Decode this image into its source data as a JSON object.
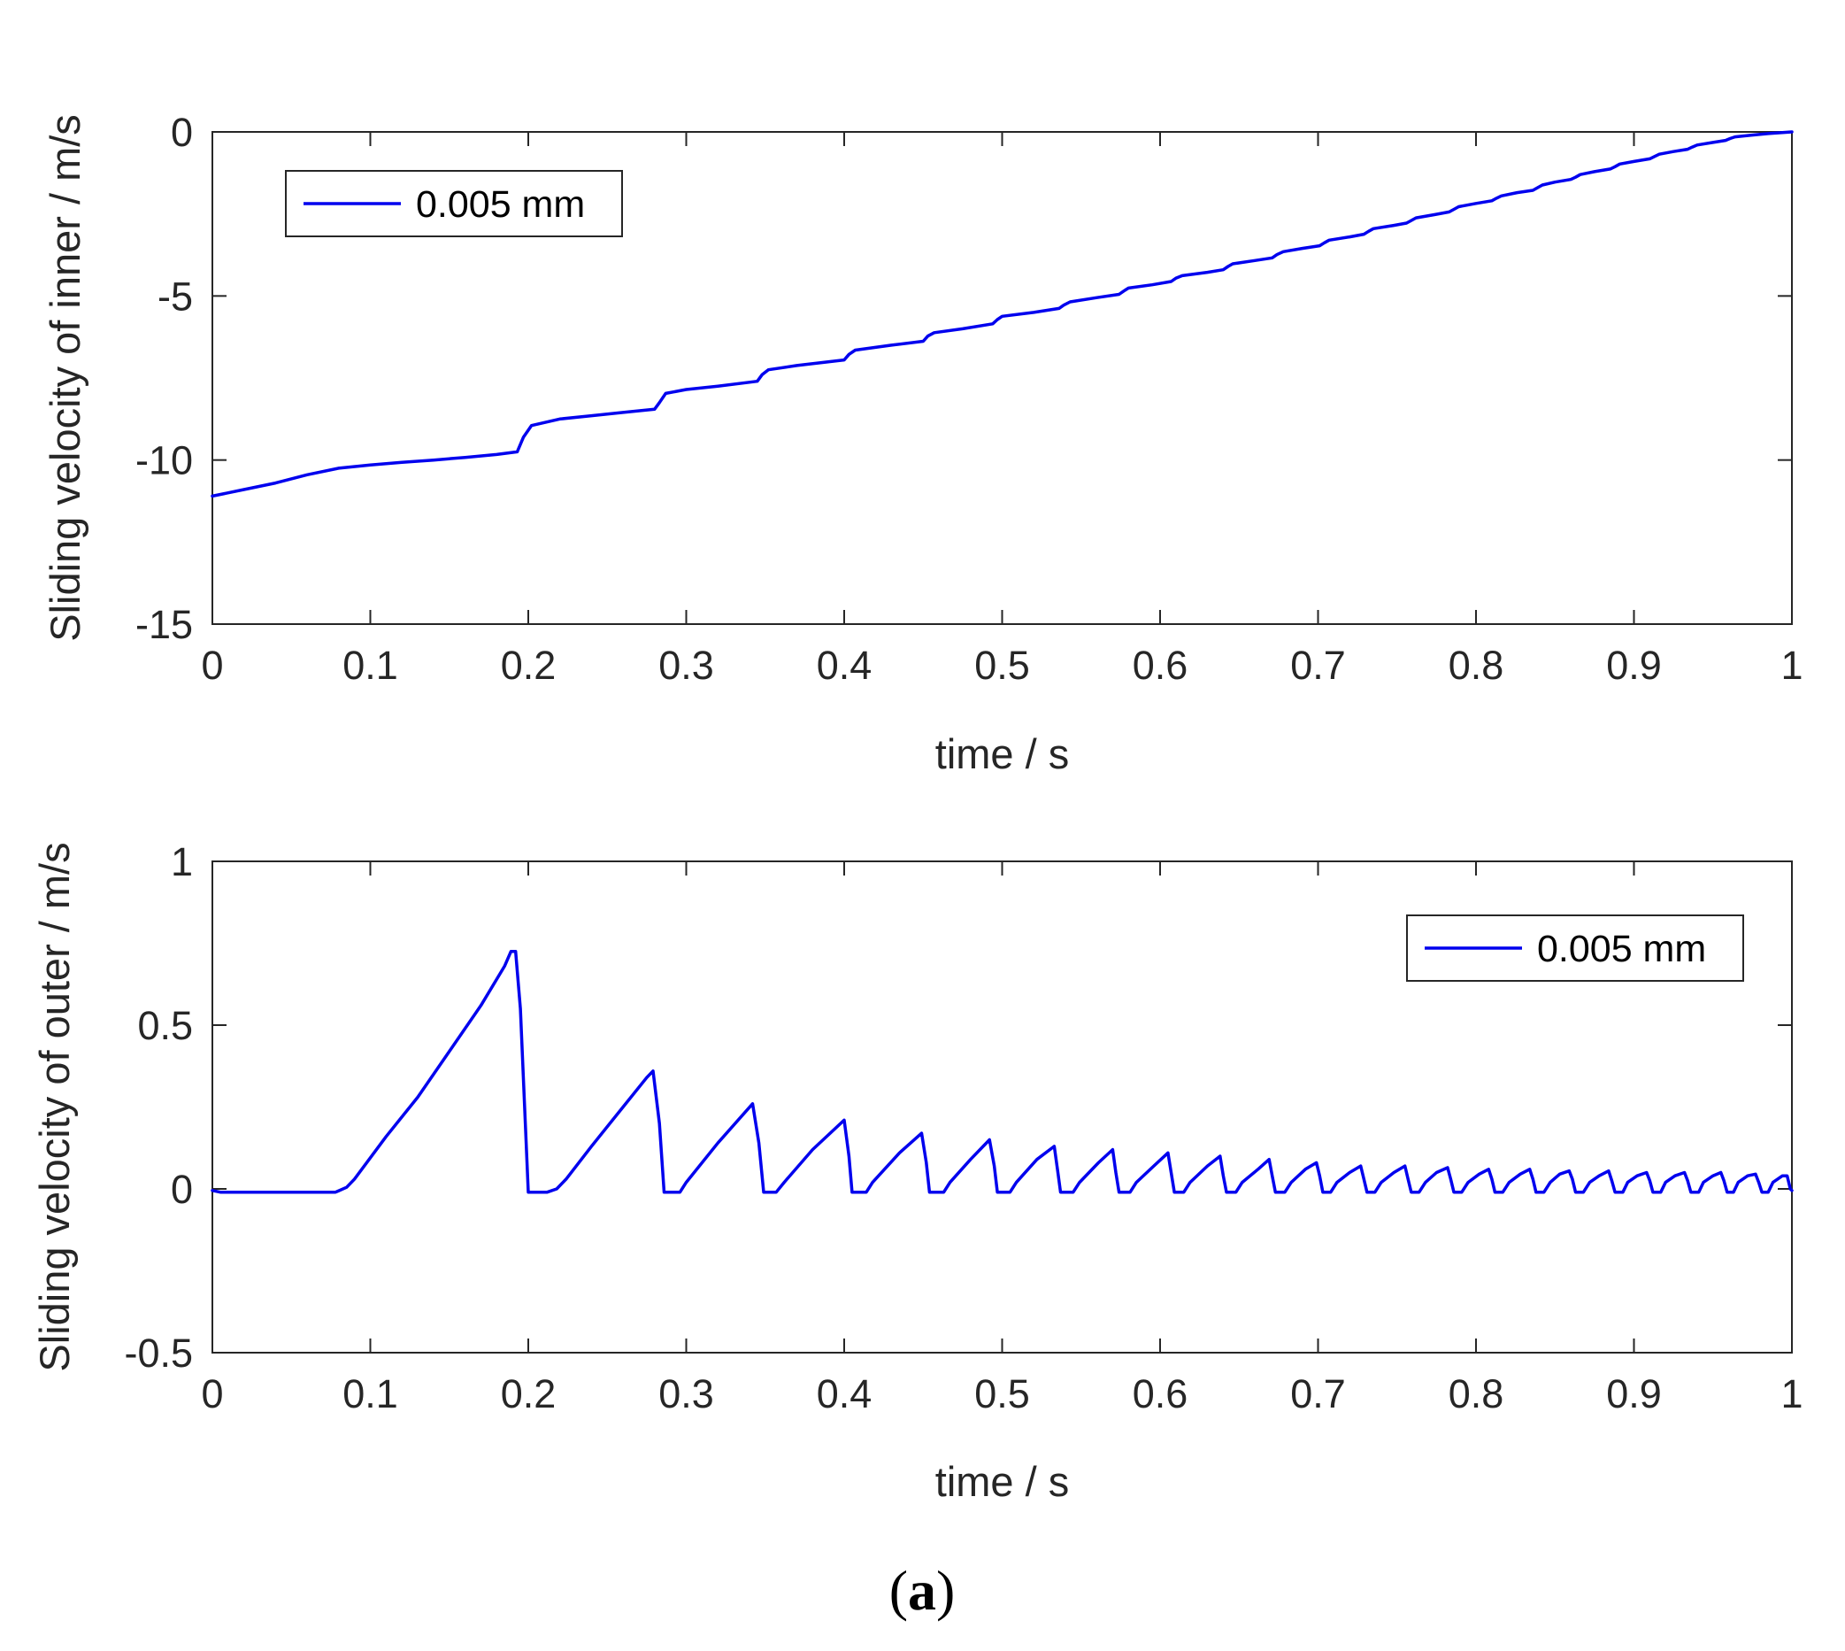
{
  "chart_data": [
    {
      "type": "line",
      "xlabel": "time / s",
      "ylabel": "Sliding velocity of inner / m/s",
      "xlim": [
        0,
        1
      ],
      "ylim": [
        -15,
        0
      ],
      "xticks": [
        0,
        0.1,
        0.2,
        0.3,
        0.4,
        0.5,
        0.6,
        0.7,
        0.8,
        0.9,
        1
      ],
      "xtick_labels": [
        "0",
        "0.1",
        "0.2",
        "0.3",
        "0.4",
        "0.5",
        "0.6",
        "0.7",
        "0.8",
        "0.9",
        "1"
      ],
      "yticks": [
        -15,
        -10,
        -5,
        0
      ],
      "ytick_labels": [
        "-15",
        "-10",
        "-5",
        "0"
      ],
      "legend_position": "top-left",
      "series": [
        {
          "name": "0.005 mm",
          "color": "#0000ee",
          "points": [
            [
              0,
              -11.1
            ],
            [
              0.02,
              -10.9
            ],
            [
              0.04,
              -10.7
            ],
            [
              0.06,
              -10.45
            ],
            [
              0.08,
              -10.25
            ],
            [
              0.1,
              -10.15
            ],
            [
              0.12,
              -10.07
            ],
            [
              0.14,
              -10.0
            ],
            [
              0.16,
              -9.92
            ],
            [
              0.18,
              -9.83
            ],
            [
              0.193,
              -9.75
            ],
            [
              0.197,
              -9.3
            ],
            [
              0.202,
              -8.95
            ],
            [
              0.22,
              -8.75
            ],
            [
              0.24,
              -8.65
            ],
            [
              0.26,
              -8.55
            ],
            [
              0.28,
              -8.45
            ],
            [
              0.283,
              -8.25
            ],
            [
              0.287,
              -7.97
            ],
            [
              0.3,
              -7.85
            ],
            [
              0.32,
              -7.75
            ],
            [
              0.345,
              -7.6
            ],
            [
              0.348,
              -7.4
            ],
            [
              0.352,
              -7.25
            ],
            [
              0.37,
              -7.12
            ],
            [
              0.4,
              -6.95
            ],
            [
              0.403,
              -6.78
            ],
            [
              0.407,
              -6.65
            ],
            [
              0.43,
              -6.5
            ],
            [
              0.45,
              -6.38
            ],
            [
              0.453,
              -6.22
            ],
            [
              0.457,
              -6.12
            ],
            [
              0.475,
              -6.0
            ],
            [
              0.494,
              -5.85
            ],
            [
              0.497,
              -5.72
            ],
            [
              0.5,
              -5.62
            ],
            [
              0.52,
              -5.5
            ],
            [
              0.536,
              -5.38
            ],
            [
              0.539,
              -5.28
            ],
            [
              0.543,
              -5.18
            ],
            [
              0.56,
              -5.05
            ],
            [
              0.574,
              -4.95
            ],
            [
              0.577,
              -4.85
            ],
            [
              0.58,
              -4.76
            ],
            [
              0.595,
              -4.66
            ],
            [
              0.607,
              -4.56
            ],
            [
              0.61,
              -4.46
            ],
            [
              0.614,
              -4.38
            ],
            [
              0.63,
              -4.28
            ],
            [
              0.64,
              -4.2
            ],
            [
              0.643,
              -4.1
            ],
            [
              0.646,
              -4.02
            ],
            [
              0.66,
              -3.92
            ],
            [
              0.671,
              -3.84
            ],
            [
              0.674,
              -3.74
            ],
            [
              0.678,
              -3.65
            ],
            [
              0.69,
              -3.55
            ],
            [
              0.701,
              -3.47
            ],
            [
              0.704,
              -3.38
            ],
            [
              0.707,
              -3.3
            ],
            [
              0.72,
              -3.2
            ],
            [
              0.729,
              -3.12
            ],
            [
              0.732,
              -3.03
            ],
            [
              0.735,
              -2.95
            ],
            [
              0.748,
              -2.85
            ],
            [
              0.756,
              -2.78
            ],
            [
              0.759,
              -2.7
            ],
            [
              0.762,
              -2.62
            ],
            [
              0.774,
              -2.52
            ],
            [
              0.783,
              -2.44
            ],
            [
              0.786,
              -2.36
            ],
            [
              0.789,
              -2.28
            ],
            [
              0.8,
              -2.18
            ],
            [
              0.81,
              -2.1
            ],
            [
              0.813,
              -2.02
            ],
            [
              0.816,
              -1.95
            ],
            [
              0.826,
              -1.85
            ],
            [
              0.836,
              -1.78
            ],
            [
              0.839,
              -1.7
            ],
            [
              0.842,
              -1.62
            ],
            [
              0.85,
              -1.53
            ],
            [
              0.86,
              -1.45
            ],
            [
              0.863,
              -1.38
            ],
            [
              0.866,
              -1.3
            ],
            [
              0.875,
              -1.21
            ],
            [
              0.885,
              -1.13
            ],
            [
              0.888,
              -1.06
            ],
            [
              0.891,
              -0.98
            ],
            [
              0.9,
              -0.9
            ],
            [
              0.91,
              -0.82
            ],
            [
              0.913,
              -0.75
            ],
            [
              0.916,
              -0.68
            ],
            [
              0.925,
              -0.6
            ],
            [
              0.934,
              -0.53
            ],
            [
              0.937,
              -0.46
            ],
            [
              0.94,
              -0.4
            ],
            [
              0.95,
              -0.32
            ],
            [
              0.958,
              -0.26
            ],
            [
              0.961,
              -0.2
            ],
            [
              0.964,
              -0.15
            ],
            [
              0.974,
              -0.1
            ],
            [
              0.985,
              -0.05
            ],
            [
              1.0,
              0.0
            ]
          ]
        }
      ]
    },
    {
      "type": "line",
      "xlabel": "time / s",
      "ylabel": "Sliding velocity of outer / m/s",
      "xlim": [
        0,
        1
      ],
      "ylim": [
        -0.5,
        1
      ],
      "xticks": [
        0,
        0.1,
        0.2,
        0.3,
        0.4,
        0.5,
        0.6,
        0.7,
        0.8,
        0.9,
        1
      ],
      "xtick_labels": [
        "0",
        "0.1",
        "0.2",
        "0.3",
        "0.4",
        "0.5",
        "0.6",
        "0.7",
        "0.8",
        "0.9",
        "1"
      ],
      "yticks": [
        -0.5,
        0,
        0.5,
        1
      ],
      "ytick_labels": [
        "-0.5",
        "0",
        "0.5",
        "1"
      ],
      "legend_position": "top-right",
      "series": [
        {
          "name": "0.005 mm",
          "color": "#0000ee",
          "points": [
            [
              0,
              -0.005
            ],
            [
              0.005,
              -0.01
            ],
            [
              0.078,
              -0.01
            ],
            [
              0.085,
              0.005
            ],
            [
              0.09,
              0.03
            ],
            [
              0.11,
              0.16
            ],
            [
              0.13,
              0.28
            ],
            [
              0.15,
              0.42
            ],
            [
              0.17,
              0.56
            ],
            [
              0.185,
              0.68
            ],
            [
              0.189,
              0.725
            ],
            [
              0.192,
              0.725
            ],
            [
              0.195,
              0.55
            ],
            [
              0.2,
              -0.01
            ],
            [
              0.212,
              -0.01
            ],
            [
              0.218,
              0.0
            ],
            [
              0.224,
              0.03
            ],
            [
              0.24,
              0.13
            ],
            [
              0.26,
              0.25
            ],
            [
              0.275,
              0.34
            ],
            [
              0.279,
              0.36
            ],
            [
              0.283,
              0.2
            ],
            [
              0.286,
              -0.01
            ],
            [
              0.296,
              -0.01
            ],
            [
              0.3,
              0.02
            ],
            [
              0.32,
              0.14
            ],
            [
              0.342,
              0.26
            ],
            [
              0.346,
              0.14
            ],
            [
              0.349,
              -0.01
            ],
            [
              0.357,
              -0.01
            ],
            [
              0.362,
              0.02
            ],
            [
              0.38,
              0.12
            ],
            [
              0.4,
              0.21
            ],
            [
              0.403,
              0.1
            ],
            [
              0.405,
              -0.01
            ],
            [
              0.414,
              -0.01
            ],
            [
              0.418,
              0.02
            ],
            [
              0.435,
              0.11
            ],
            [
              0.449,
              0.17
            ],
            [
              0.452,
              0.08
            ],
            [
              0.454,
              -0.01
            ],
            [
              0.463,
              -0.01
            ],
            [
              0.467,
              0.02
            ],
            [
              0.48,
              0.09
            ],
            [
              0.492,
              0.15
            ],
            [
              0.495,
              0.07
            ],
            [
              0.497,
              -0.01
            ],
            [
              0.505,
              -0.01
            ],
            [
              0.509,
              0.02
            ],
            [
              0.522,
              0.09
            ],
            [
              0.533,
              0.13
            ],
            [
              0.535,
              0.06
            ],
            [
              0.537,
              -0.01
            ],
            [
              0.545,
              -0.01
            ],
            [
              0.549,
              0.02
            ],
            [
              0.561,
              0.08
            ],
            [
              0.57,
              0.12
            ],
            [
              0.572,
              0.05
            ],
            [
              0.574,
              -0.01
            ],
            [
              0.581,
              -0.01
            ],
            [
              0.585,
              0.02
            ],
            [
              0.596,
              0.07
            ],
            [
              0.605,
              0.11
            ],
            [
              0.607,
              0.05
            ],
            [
              0.609,
              -0.01
            ],
            [
              0.615,
              -0.01
            ],
            [
              0.619,
              0.02
            ],
            [
              0.63,
              0.07
            ],
            [
              0.638,
              0.1
            ],
            [
              0.64,
              0.04
            ],
            [
              0.642,
              -0.01
            ],
            [
              0.648,
              -0.01
            ],
            [
              0.652,
              0.02
            ],
            [
              0.662,
              0.06
            ],
            [
              0.669,
              0.09
            ],
            [
              0.671,
              0.04
            ],
            [
              0.673,
              -0.01
            ],
            [
              0.679,
              -0.01
            ],
            [
              0.683,
              0.02
            ],
            [
              0.692,
              0.06
            ],
            [
              0.699,
              0.08
            ],
            [
              0.701,
              0.04
            ],
            [
              0.703,
              -0.01
            ],
            [
              0.708,
              -0.01
            ],
            [
              0.712,
              0.02
            ],
            [
              0.72,
              0.05
            ],
            [
              0.727,
              0.07
            ],
            [
              0.729,
              0.03
            ],
            [
              0.731,
              -0.01
            ],
            [
              0.736,
              -0.01
            ],
            [
              0.74,
              0.02
            ],
            [
              0.748,
              0.05
            ],
            [
              0.755,
              0.07
            ],
            [
              0.757,
              0.03
            ],
            [
              0.759,
              -0.01
            ],
            [
              0.764,
              -0.01
            ],
            [
              0.768,
              0.02
            ],
            [
              0.775,
              0.05
            ],
            [
              0.782,
              0.065
            ],
            [
              0.784,
              0.03
            ],
            [
              0.786,
              -0.01
            ],
            [
              0.791,
              -0.01
            ],
            [
              0.795,
              0.02
            ],
            [
              0.802,
              0.045
            ],
            [
              0.808,
              0.06
            ],
            [
              0.81,
              0.03
            ],
            [
              0.812,
              -0.01
            ],
            [
              0.817,
              -0.01
            ],
            [
              0.821,
              0.02
            ],
            [
              0.828,
              0.045
            ],
            [
              0.834,
              0.06
            ],
            [
              0.836,
              0.03
            ],
            [
              0.838,
              -0.01
            ],
            [
              0.843,
              -0.01
            ],
            [
              0.847,
              0.02
            ],
            [
              0.853,
              0.045
            ],
            [
              0.859,
              0.055
            ],
            [
              0.861,
              0.03
            ],
            [
              0.863,
              -0.01
            ],
            [
              0.868,
              -0.01
            ],
            [
              0.872,
              0.02
            ],
            [
              0.878,
              0.04
            ],
            [
              0.884,
              0.055
            ],
            [
              0.886,
              0.025
            ],
            [
              0.888,
              -0.01
            ],
            [
              0.893,
              -0.01
            ],
            [
              0.896,
              0.02
            ],
            [
              0.902,
              0.04
            ],
            [
              0.908,
              0.05
            ],
            [
              0.91,
              0.025
            ],
            [
              0.912,
              -0.01
            ],
            [
              0.917,
              -0.01
            ],
            [
              0.92,
              0.02
            ],
            [
              0.926,
              0.04
            ],
            [
              0.932,
              0.05
            ],
            [
              0.934,
              0.025
            ],
            [
              0.936,
              -0.01
            ],
            [
              0.941,
              -0.01
            ],
            [
              0.944,
              0.02
            ],
            [
              0.95,
              0.04
            ],
            [
              0.955,
              0.05
            ],
            [
              0.957,
              0.025
            ],
            [
              0.959,
              -0.01
            ],
            [
              0.963,
              -0.01
            ],
            [
              0.966,
              0.02
            ],
            [
              0.972,
              0.04
            ],
            [
              0.977,
              0.045
            ],
            [
              0.979,
              0.02
            ],
            [
              0.981,
              -0.01
            ],
            [
              0.985,
              -0.01
            ],
            [
              0.988,
              0.02
            ],
            [
              0.994,
              0.04
            ],
            [
              0.997,
              0.04
            ],
            [
              0.999,
              0.0
            ],
            [
              1.0,
              -0.005
            ]
          ]
        }
      ]
    }
  ],
  "caption": {
    "open": "(",
    "letter": "a",
    "close": ")"
  }
}
